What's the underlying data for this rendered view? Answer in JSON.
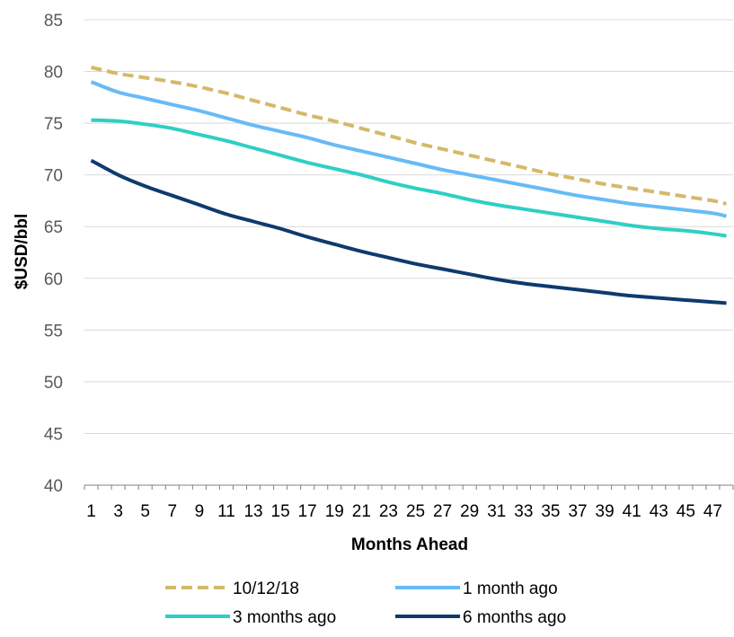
{
  "chart_data": {
    "type": "line",
    "title": "",
    "xlabel": "Months Ahead",
    "ylabel": "$USD/bbl",
    "ylim": [
      40,
      85
    ],
    "yticks": [
      40,
      45,
      50,
      55,
      60,
      65,
      70,
      75,
      80,
      85
    ],
    "xlim": [
      1,
      48
    ],
    "x_tick_labels": [
      "1",
      "3",
      "5",
      "7",
      "9",
      "11",
      "13",
      "15",
      "17",
      "19",
      "21",
      "23",
      "25",
      "27",
      "29",
      "31",
      "33",
      "35",
      "37",
      "39",
      "41",
      "43",
      "45",
      "47"
    ],
    "grid": "horizontal",
    "legend_position": "bottom",
    "series": [
      {
        "name": "10/12/18",
        "color": "#D4B96A",
        "dash": true,
        "x": [
          1,
          3,
          5,
          7,
          9,
          11,
          13,
          15,
          17,
          19,
          21,
          23,
          25,
          27,
          29,
          31,
          33,
          35,
          37,
          39,
          41,
          43,
          45,
          47,
          48
        ],
        "values": [
          80.4,
          79.8,
          79.4,
          79.0,
          78.5,
          77.9,
          77.2,
          76.5,
          75.8,
          75.2,
          74.5,
          73.8,
          73.1,
          72.5,
          71.9,
          71.3,
          70.7,
          70.1,
          69.6,
          69.1,
          68.7,
          68.3,
          67.9,
          67.5,
          67.2
        ]
      },
      {
        "name": "1 month ago",
        "color": "#66BBF5",
        "dash": false,
        "x": [
          1,
          3,
          5,
          7,
          9,
          11,
          13,
          15,
          17,
          19,
          21,
          23,
          25,
          27,
          29,
          31,
          33,
          35,
          37,
          39,
          41,
          43,
          45,
          47,
          48
        ],
        "values": [
          79.0,
          78.0,
          77.4,
          76.8,
          76.2,
          75.5,
          74.8,
          74.2,
          73.6,
          72.9,
          72.3,
          71.7,
          71.1,
          70.5,
          70.0,
          69.5,
          69.0,
          68.5,
          68.0,
          67.6,
          67.2,
          66.9,
          66.6,
          66.3,
          66.0
        ]
      },
      {
        "name": "3 months ago",
        "color": "#2ECFC4",
        "dash": false,
        "x": [
          1,
          3,
          5,
          7,
          9,
          11,
          13,
          15,
          17,
          19,
          21,
          23,
          25,
          27,
          29,
          31,
          33,
          35,
          37,
          39,
          41,
          43,
          45,
          47,
          48
        ],
        "values": [
          75.3,
          75.2,
          74.9,
          74.5,
          73.9,
          73.3,
          72.6,
          71.9,
          71.2,
          70.6,
          70.0,
          69.3,
          68.7,
          68.2,
          67.6,
          67.1,
          66.7,
          66.3,
          65.9,
          65.5,
          65.1,
          64.8,
          64.6,
          64.3,
          64.1
        ]
      },
      {
        "name": "6 months ago",
        "color": "#0E3A6E",
        "dash": false,
        "x": [
          1,
          3,
          5,
          7,
          9,
          11,
          13,
          15,
          17,
          19,
          21,
          23,
          25,
          27,
          29,
          31,
          33,
          35,
          37,
          39,
          41,
          43,
          45,
          47,
          48
        ],
        "values": [
          71.4,
          70.0,
          68.9,
          68.0,
          67.1,
          66.2,
          65.5,
          64.8,
          64.0,
          63.3,
          62.6,
          62.0,
          61.4,
          60.9,
          60.4,
          59.9,
          59.5,
          59.2,
          58.9,
          58.6,
          58.3,
          58.1,
          57.9,
          57.7,
          57.6
        ]
      }
    ]
  }
}
